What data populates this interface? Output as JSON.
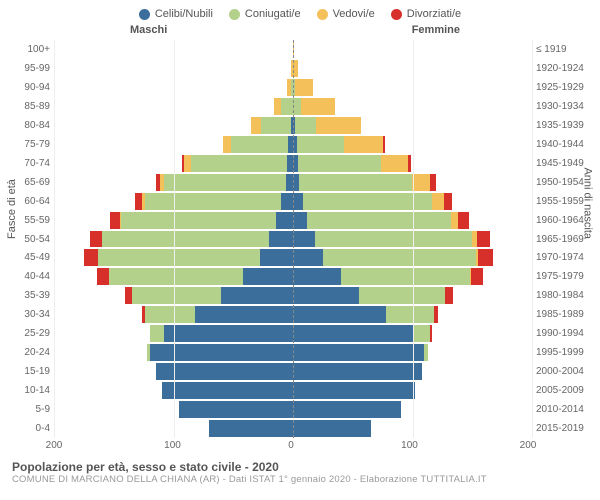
{
  "legend": [
    {
      "label": "Celibi/Nubili",
      "color": "#3b6e9a"
    },
    {
      "label": "Coniugati/e",
      "color": "#b3d18a"
    },
    {
      "label": "Vedovi/e",
      "color": "#f3c05a"
    },
    {
      "label": "Divorziati/e",
      "color": "#d72f2a"
    }
  ],
  "headers": {
    "male": "Maschi",
    "female": "Femmine"
  },
  "axis_labels": {
    "left": "Fasce di età",
    "right": "Anni di nascita"
  },
  "x_ticks": [
    200,
    100,
    0,
    100,
    200
  ],
  "x_max": 200,
  "age_labels": [
    "100+",
    "95-99",
    "90-94",
    "85-89",
    "80-84",
    "75-79",
    "70-74",
    "65-69",
    "60-64",
    "55-59",
    "50-54",
    "45-49",
    "40-44",
    "35-39",
    "30-34",
    "25-29",
    "20-24",
    "15-19",
    "10-14",
    "5-9",
    "0-4"
  ],
  "birth_labels": [
    "≤ 1919",
    "1920-1924",
    "1925-1929",
    "1930-1934",
    "1935-1939",
    "1940-1944",
    "1945-1949",
    "1950-1954",
    "1955-1959",
    "1960-1964",
    "1965-1969",
    "1970-1974",
    "1975-1979",
    "1980-1984",
    "1985-1989",
    "1990-1994",
    "1995-1999",
    "2000-2004",
    "2005-2009",
    "2010-2014",
    "2015-2019"
  ],
  "rows": [
    {
      "m": [
        0,
        0,
        0,
        0
      ],
      "f": [
        0,
        0,
        1,
        0
      ]
    },
    {
      "m": [
        0,
        0,
        2,
        0
      ],
      "f": [
        0,
        0,
        4,
        0
      ]
    },
    {
      "m": [
        0,
        2,
        3,
        0
      ],
      "f": [
        0,
        2,
        15,
        0
      ]
    },
    {
      "m": [
        0,
        10,
        6,
        0
      ],
      "f": [
        0,
        7,
        28,
        0
      ]
    },
    {
      "m": [
        2,
        25,
        8,
        0
      ],
      "f": [
        2,
        17,
        38,
        0
      ]
    },
    {
      "m": [
        4,
        48,
        7,
        0
      ],
      "f": [
        3,
        40,
        32,
        2
      ]
    },
    {
      "m": [
        5,
        80,
        6,
        2
      ],
      "f": [
        4,
        70,
        22,
        3
      ]
    },
    {
      "m": [
        6,
        102,
        3,
        4
      ],
      "f": [
        5,
        95,
        15,
        5
      ]
    },
    {
      "m": [
        10,
        114,
        2,
        6
      ],
      "f": [
        8,
        108,
        10,
        7
      ]
    },
    {
      "m": [
        14,
        130,
        1,
        8
      ],
      "f": [
        12,
        120,
        6,
        9
      ]
    },
    {
      "m": [
        20,
        140,
        0,
        10
      ],
      "f": [
        18,
        132,
        4,
        11
      ]
    },
    {
      "m": [
        28,
        135,
        0,
        12
      ],
      "f": [
        25,
        128,
        2,
        12
      ]
    },
    {
      "m": [
        42,
        112,
        0,
        10
      ],
      "f": [
        40,
        108,
        1,
        10
      ]
    },
    {
      "m": [
        60,
        75,
        0,
        6
      ],
      "f": [
        55,
        72,
        0,
        7
      ]
    },
    {
      "m": [
        82,
        42,
        0,
        2
      ],
      "f": [
        78,
        40,
        0,
        3
      ]
    },
    {
      "m": [
        108,
        12,
        0,
        0
      ],
      "f": [
        100,
        15,
        0,
        1
      ]
    },
    {
      "m": [
        120,
        2,
        0,
        0
      ],
      "f": [
        110,
        3,
        0,
        0
      ]
    },
    {
      "m": [
        115,
        0,
        0,
        0
      ],
      "f": [
        108,
        0,
        0,
        0
      ]
    },
    {
      "m": [
        110,
        0,
        0,
        0
      ],
      "f": [
        102,
        0,
        0,
        0
      ]
    },
    {
      "m": [
        95,
        0,
        0,
        0
      ],
      "f": [
        90,
        0,
        0,
        0
      ]
    },
    {
      "m": [
        70,
        0,
        0,
        0
      ],
      "f": [
        65,
        0,
        0,
        0
      ]
    }
  ],
  "colors": {
    "celibi": "#3b6e9a",
    "coniugati": "#b3d18a",
    "vedovi": "#f3c05a",
    "divorziati": "#d72f2a",
    "grid": "#eeeeee",
    "center": "#888888",
    "text": "#555555"
  },
  "title": "Popolazione per età, sesso e stato civile - 2020",
  "subtitle": "COMUNE DI MARCIANO DELLA CHIANA (AR) - Dati ISTAT 1° gennaio 2020 - Elaborazione TUTTITALIA.IT"
}
